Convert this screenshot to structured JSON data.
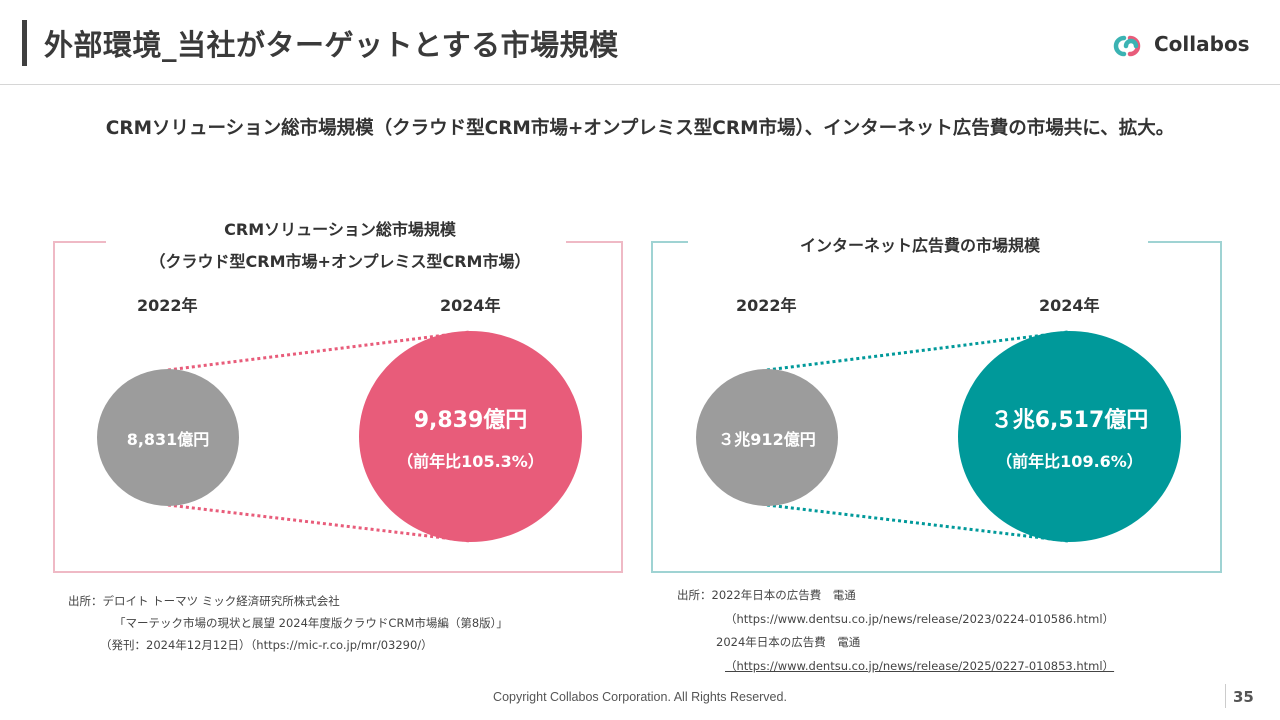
{
  "slide": {
    "title": "外部環境_当社がターゲットとする市場規模",
    "headline": "CRMソリューション総市場規模（クラウド型CRM市場+オンプレミス型CRM市場）、インターネット広告費の市場共に、拡大。",
    "logo_text": "Collabos",
    "footer": "Copyright Collabos Corporation. All Rights Reserved.",
    "page_number": "35"
  },
  "colors": {
    "crm_accent": "#e85c7a",
    "crm_frame": "#efb9c5",
    "ad_accent": "#00999a",
    "ad_frame": "#9fd3d3",
    "prior_year": "#9c9c9c"
  },
  "crm": {
    "heading_line1": "CRMソリューション総市場規模",
    "heading_line2": "（クラウド型CRM市場+オンプレミス型CRM市場）",
    "year_prev": "2022年",
    "year_curr": "2024年",
    "value_prev": "8,831億円",
    "value_curr": "9,839億円",
    "growth": "（前年比105.3%）",
    "source_line1": "出所：デロイト トーマツ ミック経済研究所株式会社",
    "source_line2": "「マーテック市場の現状と展望 2024年度版クラウドCRM市場編（第8版）」",
    "source_line3": "（発刊：2024年12月12日）（https://mic-r.co.jp/mr/03290/）"
  },
  "ad": {
    "heading": "インターネット広告費の市場規模",
    "year_prev": "2022年",
    "year_curr": "2024年",
    "value_prev": "３兆912億円",
    "value_curr": "３兆6,517億円",
    "growth": "（前年比109.6%）",
    "source_line1": "出所：2022年日本の広告費　電通",
    "source_line2": "（https://www.dentsu.co.jp/news/release/2023/0224-010586.html）",
    "source_line3": "2024年日本の広告費　電通",
    "source_line4": "（https://www.dentsu.co.jp/news/release/2025/0227-010853.html）"
  }
}
